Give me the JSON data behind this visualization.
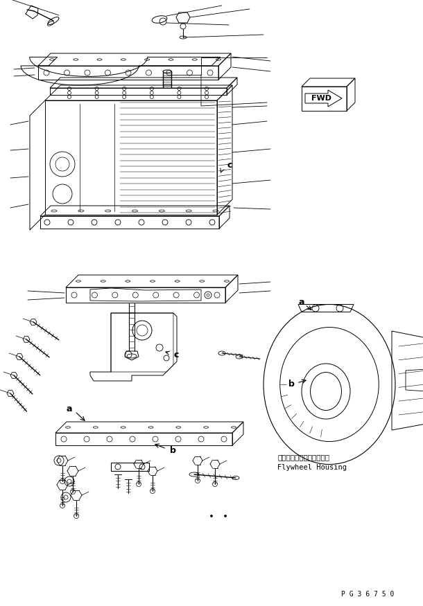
{
  "bg_color": "#ffffff",
  "line_color": "#000000",
  "fig_width": 6.1,
  "fig_height": 8.75,
  "dpi": 100,
  "page_id": "P G 3 6 7 5 0",
  "fwd_label": "FWD",
  "flywheel_jp": "フライホイールハウジング",
  "flywheel_en": "Flywheel Housing"
}
